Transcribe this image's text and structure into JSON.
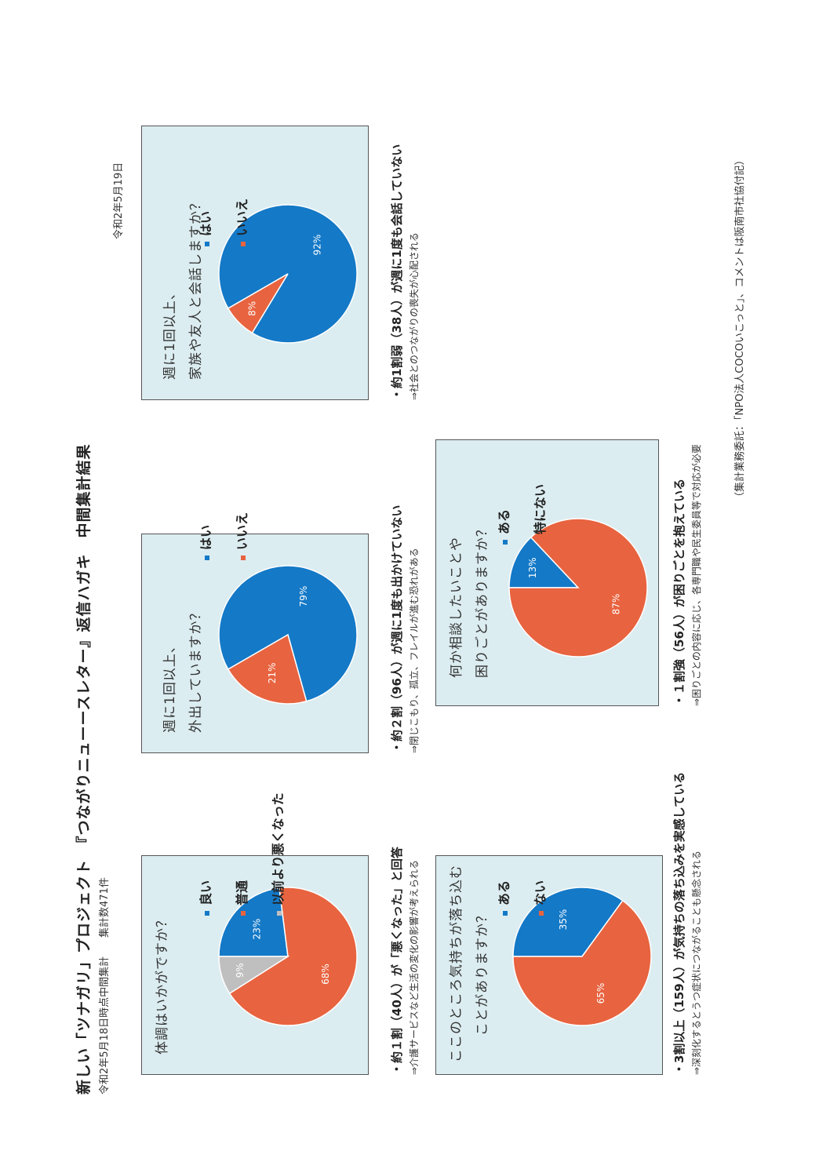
{
  "header": {
    "title": "新しい「ツナガリ」プロジェクト　『つながりニューースレター』返信ハガキ　中間集計結果",
    "date_note": "令和2年5月18日時点中間集計",
    "total": "集計数471件",
    "report_date": "令和2年5月19日"
  },
  "colors": {
    "blue": "#1479c7",
    "orange": "#e8633f",
    "gray": "#bfbfbf",
    "panel_bg": "#dcedf1"
  },
  "charts": [
    {
      "question": [
        "体調はいかがですか？"
      ],
      "legend": [
        {
          "label": "良い",
          "color": "#1479c7"
        },
        {
          "label": "普通",
          "color": "#e8633f"
        },
        {
          "label": "以前より悪くなった",
          "color": "#bfbfbf"
        }
      ],
      "finding": "・約１割（40人）が「悪くなった」と回答",
      "note": "⇒介護サービスなど生活の変化の影響が考えられる"
    },
    {
      "question": [
        "週に1回以上、",
        "外出していますか？"
      ],
      "legend": [
        {
          "label": "はい",
          "color": "#1479c7"
        },
        {
          "label": "いいえ",
          "color": "#e8633f"
        }
      ],
      "finding": "・約２割（96人）が週に1度も出かけていない",
      "note": "⇒閉じこもり、孤立、フレイルが進む恐れがある"
    },
    {
      "question": [
        "週に1回以上、",
        "家族や友人と会話しますか？"
      ],
      "legend": [
        {
          "label": "はい",
          "color": "#1479c7"
        },
        {
          "label": "いいえ",
          "color": "#e8633f"
        }
      ],
      "finding": "・約1割弱（38人）が週に1度も会話していない",
      "note": "⇒社会とのつながりの喪失が心配される"
    },
    {
      "question": [
        "ここのところ気持ちが落ち込む",
        "ことがありますか？"
      ],
      "legend": [
        {
          "label": "ある",
          "color": "#1479c7"
        },
        {
          "label": "ない",
          "color": "#e8633f"
        }
      ],
      "finding": "・3割以上（159人）が気持ちの落ち込みを実感している",
      "note": "⇒深刻化するとうつ症状につながることも懸念される"
    },
    {
      "question": [
        "何か相談したいことや",
        "困りごとがありますか？"
      ],
      "legend": [
        {
          "label": "ある",
          "color": "#1479c7"
        },
        {
          "label": "特にない",
          "color": "#e8633f"
        }
      ],
      "finding": "・１割強（56人）が困りごとを抱えている",
      "note": "⇒困りごとの内容に応じ、各専門職や民生委員等で対応が必要"
    }
  ],
  "chart_data": [
    {
      "type": "pie",
      "title": "体調はいかがですか？",
      "categories": [
        "良い",
        "普通",
        "以前より悪くなった"
      ],
      "values": [
        23,
        68,
        9
      ],
      "labels": [
        "23%",
        "68%",
        "9%"
      ]
    },
    {
      "type": "pie",
      "title": "週に1回以上、外出していますか？",
      "categories": [
        "はい",
        "いいえ"
      ],
      "values": [
        79,
        21
      ],
      "labels": [
        "79%",
        "21%"
      ]
    },
    {
      "type": "pie",
      "title": "週に1回以上、家族や友人と会話しますか？",
      "categories": [
        "はい",
        "いいえ"
      ],
      "values": [
        92,
        8
      ],
      "labels": [
        "92%",
        "8%"
      ]
    },
    {
      "type": "pie",
      "title": "ここのところ気持ちが落ち込むことがありますか？",
      "categories": [
        "ある",
        "ない"
      ],
      "values": [
        35,
        65
      ],
      "labels": [
        "35%",
        "65%"
      ]
    },
    {
      "type": "pie",
      "title": "何か相談したいことや困りごとがありますか？",
      "categories": [
        "ある",
        "特にない"
      ],
      "values": [
        13,
        87
      ],
      "labels": [
        "13%",
        "87%"
      ]
    }
  ],
  "footer": "（集計業務委託：「NPO法人COCOいこっと」、コメントは阪南市社協付記）"
}
